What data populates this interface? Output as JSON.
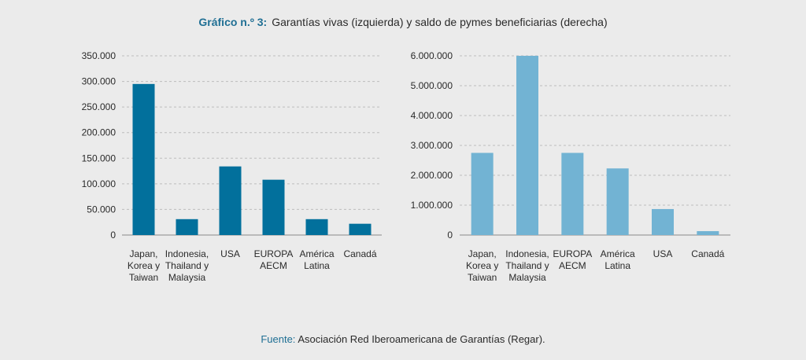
{
  "title": {
    "label": "Gráfico n.º 3:",
    "text": "Garantías vivas (izquierda) y saldo de pymes beneficiarias (derecha)"
  },
  "source": {
    "label": "Fuente:",
    "text": "Asociación Red Iberoamericana de Garantías (Regar)."
  },
  "colors": {
    "left_bar": "#02709c",
    "right_bar": "#72b3d3",
    "grid": "#bdbdbd",
    "axis": "#8a8a8a"
  },
  "chart_data": [
    {
      "type": "bar",
      "categories": [
        [
          "Japan,",
          "Korea y",
          "Taiwan"
        ],
        [
          "Indonesia,",
          "Thailand y",
          "Malaysia"
        ],
        [
          "USA"
        ],
        [
          "EUROPA",
          "AECM"
        ],
        [
          "América",
          "Latina"
        ],
        [
          "Canadá"
        ]
      ],
      "values": [
        295000,
        31000,
        134000,
        108000,
        31000,
        22000
      ],
      "ylim": [
        0,
        350000
      ],
      "yticks": [
        0,
        50000,
        100000,
        150000,
        200000,
        250000,
        300000,
        350000
      ],
      "ytick_labels": [
        "0",
        "50.000",
        "100.000",
        "150.000",
        "200.000",
        "250.000",
        "300.000",
        "350.000"
      ],
      "grid": true
    },
    {
      "type": "bar",
      "categories": [
        [
          "Japan,",
          "Korea y",
          "Taiwan"
        ],
        [
          "Indonesia,",
          "Thailand y",
          "Malaysia"
        ],
        [
          "EUROPA",
          "AECM"
        ],
        [
          "América",
          "Latina"
        ],
        [
          "USA"
        ],
        [
          "Canadá"
        ]
      ],
      "values": [
        2750000,
        6000000,
        2750000,
        2230000,
        870000,
        130000
      ],
      "ylim": [
        0,
        6000000
      ],
      "yticks": [
        0,
        1000000,
        2000000,
        3000000,
        4000000,
        5000000,
        6000000
      ],
      "ytick_labels": [
        "0",
        "1.000.000",
        "2.000.000",
        "3.000.000",
        "4.000.000",
        "5.000.000",
        "6.000.000"
      ],
      "grid": true
    }
  ]
}
